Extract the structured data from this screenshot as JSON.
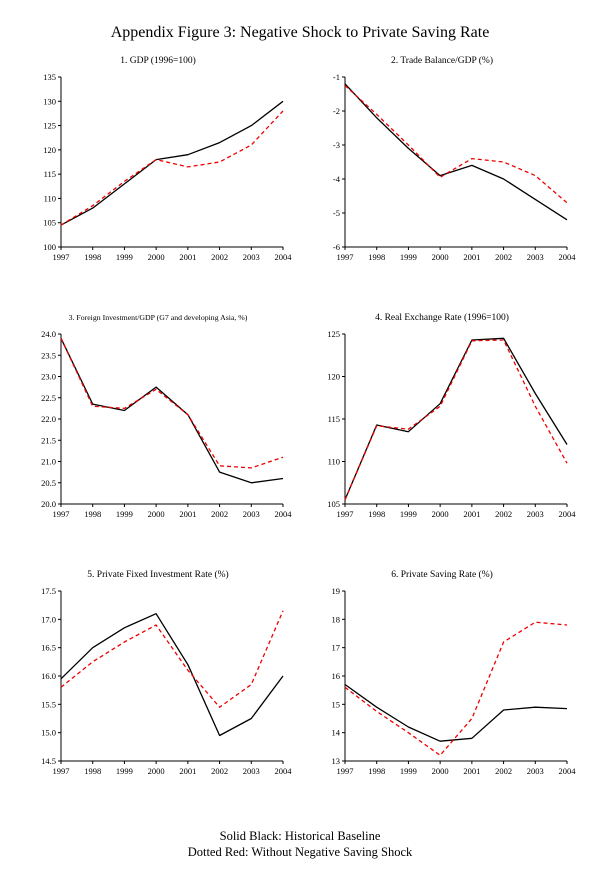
{
  "page": {
    "title": "Appendix Figure 3: Negative Shock to Private Saving Rate"
  },
  "legend": {
    "line1": "Solid Black: Historical Baseline",
    "line2": "Dotted Red: Without Negative Saving Shock"
  },
  "colors": {
    "baseline": "#000000",
    "counterfactual": "#ee0000"
  },
  "chart_data": [
    {
      "type": "line",
      "title": "1. GDP (1996=100)",
      "categories": [
        "1997",
        "1998",
        "1999",
        "2000",
        "2001",
        "2002",
        "2003",
        "2004"
      ],
      "ylim": [
        100,
        135
      ],
      "ystep": 5,
      "ydecimals": 0,
      "series": [
        {
          "name": "Historical Baseline",
          "style": "solid",
          "color": "#000000",
          "values": [
            104.5,
            108,
            113,
            118,
            119,
            121.5,
            125,
            130
          ]
        },
        {
          "name": "Without Negative Saving Shock",
          "style": "dashed",
          "color": "#ee0000",
          "values": [
            104.5,
            108.5,
            113.5,
            118,
            116.5,
            117.5,
            121,
            128
          ]
        }
      ]
    },
    {
      "type": "line",
      "title": "2. Trade Balance/GDP (%)",
      "categories": [
        "1997",
        "1998",
        "1999",
        "2000",
        "2001",
        "2002",
        "2003",
        "2004"
      ],
      "ylim": [
        -6,
        -1
      ],
      "ystep": 1,
      "ydecimals": 0,
      "series": [
        {
          "name": "Historical Baseline",
          "style": "solid",
          "color": "#000000",
          "values": [
            -1.2,
            -2.2,
            -3.1,
            -3.9,
            -3.6,
            -4.0,
            -4.6,
            -5.2
          ]
        },
        {
          "name": "Without Negative Saving Shock",
          "style": "dashed",
          "color": "#ee0000",
          "values": [
            -1.25,
            -2.1,
            -3.0,
            -3.95,
            -3.4,
            -3.5,
            -3.9,
            -4.7
          ]
        }
      ]
    },
    {
      "type": "line",
      "title": "3. Foreign Investment/GDP (G7 and developing Asia, %)",
      "categories": [
        "1997",
        "1998",
        "1999",
        "2000",
        "2001",
        "2002",
        "2003",
        "2004"
      ],
      "ylim": [
        20.0,
        24.0
      ],
      "ystep": 0.5,
      "ydecimals": 1,
      "series": [
        {
          "name": "Historical Baseline",
          "style": "solid",
          "color": "#000000",
          "values": [
            23.9,
            22.35,
            22.2,
            22.75,
            22.1,
            20.75,
            20.5,
            20.6
          ]
        },
        {
          "name": "Without Negative Saving Shock",
          "style": "dashed",
          "color": "#ee0000",
          "values": [
            23.9,
            22.3,
            22.25,
            22.7,
            22.1,
            20.9,
            20.85,
            21.1
          ]
        }
      ]
    },
    {
      "type": "line",
      "title": "4. Real Exchange Rate (1996=100)",
      "categories": [
        "1997",
        "1998",
        "1999",
        "2000",
        "2001",
        "2002",
        "2003",
        "2004"
      ],
      "ylim": [
        105,
        125
      ],
      "ystep": 5,
      "ydecimals": 0,
      "series": [
        {
          "name": "Historical Baseline",
          "style": "solid",
          "color": "#000000",
          "values": [
            105.5,
            114.3,
            113.5,
            116.8,
            124.3,
            124.5,
            118,
            112
          ]
        },
        {
          "name": "Without Negative Saving Shock",
          "style": "dashed",
          "color": "#ee0000",
          "values": [
            105.5,
            114.2,
            113.8,
            116.5,
            124.2,
            124.3,
            116.5,
            109.8
          ]
        }
      ]
    },
    {
      "type": "line",
      "title": "5. Private Fixed Investment Rate (%)",
      "categories": [
        "1997",
        "1998",
        "1999",
        "2000",
        "2001",
        "2002",
        "2003",
        "2004"
      ],
      "ylim": [
        14.5,
        17.5
      ],
      "ystep": 0.5,
      "ydecimals": 1,
      "series": [
        {
          "name": "Historical Baseline",
          "style": "solid",
          "color": "#000000",
          "values": [
            15.95,
            16.5,
            16.85,
            17.1,
            16.2,
            14.95,
            15.25,
            16.0
          ]
        },
        {
          "name": "Without Negative Saving Shock",
          "style": "dashed",
          "color": "#ee0000",
          "values": [
            15.8,
            16.25,
            16.6,
            16.9,
            16.1,
            15.45,
            15.85,
            17.15
          ]
        }
      ]
    },
    {
      "type": "line",
      "title": "6. Private Saving Rate (%)",
      "categories": [
        "1997",
        "1998",
        "1999",
        "2000",
        "2001",
        "2002",
        "2003",
        "2004"
      ],
      "ylim": [
        13,
        19
      ],
      "ystep": 1,
      "ydecimals": 0,
      "series": [
        {
          "name": "Historical Baseline",
          "style": "solid",
          "color": "#000000",
          "values": [
            15.7,
            14.9,
            14.2,
            13.7,
            13.8,
            14.8,
            14.9,
            14.85
          ]
        },
        {
          "name": "Without Negative Saving Shock",
          "style": "dashed",
          "color": "#ee0000",
          "values": [
            15.6,
            14.75,
            14.0,
            13.2,
            14.5,
            17.2,
            17.9,
            17.8
          ]
        }
      ]
    }
  ]
}
